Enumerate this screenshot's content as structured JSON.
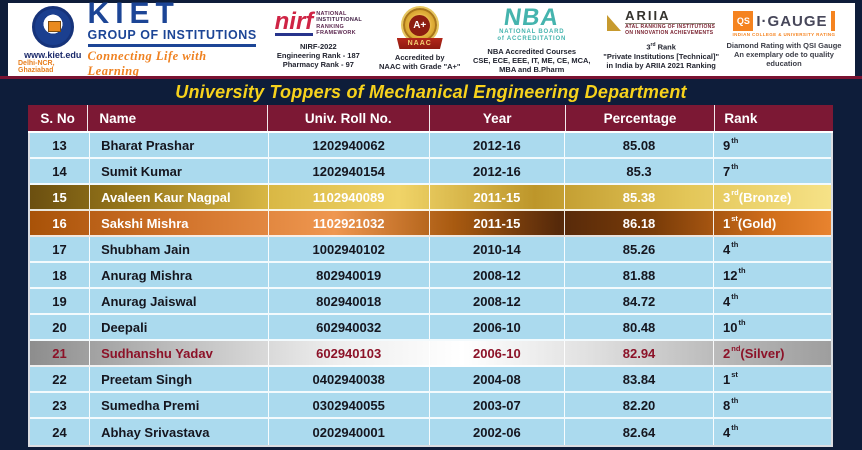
{
  "title": "University Toppers of Mechanical Engineering Department",
  "header_strip": {
    "kiet": {
      "website": "www.kiet.edu",
      "location": "Delhi-NCR, Ghaziabad",
      "name": "KIET",
      "subtitle": "GROUP OF INSTITUTIONS",
      "tagline": "Connecting Life with Learning"
    },
    "nirf": {
      "logo_text": "nirf",
      "org_lines": [
        "NATIONAL",
        "INSTITUTIONAL",
        "RANKING",
        "FRAMEWORK"
      ],
      "lines": [
        "NIRF-2022",
        "Engineering Rank - 187",
        "Pharmacy Rank - 97"
      ]
    },
    "naac": {
      "grade": "A+",
      "ribbon": "NAAC",
      "lines": [
        "Accredited by",
        "NAAC with Grade \"A+\""
      ]
    },
    "nba": {
      "logo_text": "NBA",
      "org_lines": [
        "NATIONAL BOARD",
        "of ACCREDITATION"
      ],
      "lines": [
        "NBA Accredited Courses",
        "CSE, ECE, EEE, IT, ME, CE, MCA,",
        "MBA and B.Pharm"
      ]
    },
    "ariia": {
      "logo_text": "ARIIA",
      "org_lines": [
        "ATAL RANKING OF INSTITUTIONS",
        "ON INNOVATION ACHIEVEMENTS"
      ],
      "rank_prefix": "3",
      "rank_suffix": "rd",
      "rank_word": " Rank",
      "lines": [
        "\"Private Institutions [Technical]\"",
        "in India by ARIIA 2021 Ranking"
      ]
    },
    "qs": {
      "qs_text": "QS",
      "logo_text": "I·GAUGE",
      "sub_text": "INDIAN COLLEGE & UNIVERSITY RATING",
      "lines": [
        "Diamond Rating with QSI Gauge",
        "An exemplary ode to quality education"
      ]
    }
  },
  "table": {
    "columns": [
      "S. No",
      "Name",
      "Univ. Roll No.",
      "Year",
      "Percentage",
      "Rank"
    ],
    "rows": [
      {
        "sno": "13",
        "name": "Bharat Prashar",
        "roll": "1202940062",
        "year": "2012-16",
        "pct": "85.08",
        "rank": {
          "n": "9",
          "suf": "th",
          "extra": ""
        },
        "style": "normal"
      },
      {
        "sno": "14",
        "name": "Sumit Kumar",
        "roll": "1202940154",
        "year": "2012-16",
        "pct": "85.3",
        "rank": {
          "n": "7",
          "suf": "th",
          "extra": ""
        },
        "style": "normal"
      },
      {
        "sno": "15",
        "name": "Avaleen Kaur Nagpal",
        "roll": "1102940089",
        "year": "2011-15",
        "pct": "85.38",
        "rank": {
          "n": "3",
          "suf": "rd",
          "extra": " (Bronze)"
        },
        "style": "bronze"
      },
      {
        "sno": "16",
        "name": "Sakshi Mishra",
        "roll": "1102921032",
        "year": "2011-15",
        "pct": "86.18",
        "rank": {
          "n": "1",
          "suf": "st",
          "extra": " (Gold)"
        },
        "style": "gold"
      },
      {
        "sno": "17",
        "name": "Shubham Jain",
        "roll": "1002940102",
        "year": "2010-14",
        "pct": "85.26",
        "rank": {
          "n": "4",
          "suf": "th",
          "extra": ""
        },
        "style": "normal"
      },
      {
        "sno": "18",
        "name": "Anurag Mishra",
        "roll": "802940019",
        "year": "2008-12",
        "pct": "81.88",
        "rank": {
          "n": "12",
          "suf": "th",
          "extra": ""
        },
        "style": "normal"
      },
      {
        "sno": "19",
        "name": "Anurag Jaiswal",
        "roll": "802940018",
        "year": "2008-12",
        "pct": "84.72",
        "rank": {
          "n": "4",
          "suf": "th",
          "extra": ""
        },
        "style": "normal"
      },
      {
        "sno": "20",
        "name": "Deepali",
        "roll": "602940032",
        "year": "2006-10",
        "pct": "80.48",
        "rank": {
          "n": "10",
          "suf": "th",
          "extra": ""
        },
        "style": "normal"
      },
      {
        "sno": "21",
        "name": "Sudhanshu Yadav",
        "roll": "602940103",
        "year": "2006-10",
        "pct": "82.94",
        "rank": {
          "n": "2",
          "suf": "nd",
          "extra": " (Silver)"
        },
        "style": "silver"
      },
      {
        "sno": "22",
        "name": "Preetam Singh",
        "roll": "0402940038",
        "year": "2004-08",
        "pct": "83.84",
        "rank": {
          "n": "1",
          "suf": "st",
          "extra": ""
        },
        "style": "normal"
      },
      {
        "sno": "23",
        "name": "Sumedha Premi",
        "roll": "0302940055",
        "year": "2003-07",
        "pct": "82.20",
        "rank": {
          "n": "8",
          "suf": "th",
          "extra": ""
        },
        "style": "normal"
      },
      {
        "sno": "24",
        "name": "Abhay Srivastava",
        "roll": "0202940001",
        "year": "2002-06",
        "pct": "82.64",
        "rank": {
          "n": "4",
          "suf": "th",
          "extra": ""
        },
        "style": "normal"
      }
    ]
  },
  "colors": {
    "page_background": "#0e1d3a",
    "title_text": "#f7d21c",
    "header_row_background": "#7c1834",
    "data_row_background": "#abdaee",
    "divider_maroon": "#7a1332",
    "gold_row_accent": "#e8832f",
    "bronze_row_accent": "#f0d468",
    "silver_row_accent": "#ededed",
    "kiet_blue": "#1c4596",
    "kiet_orange": "#ef8120"
  }
}
